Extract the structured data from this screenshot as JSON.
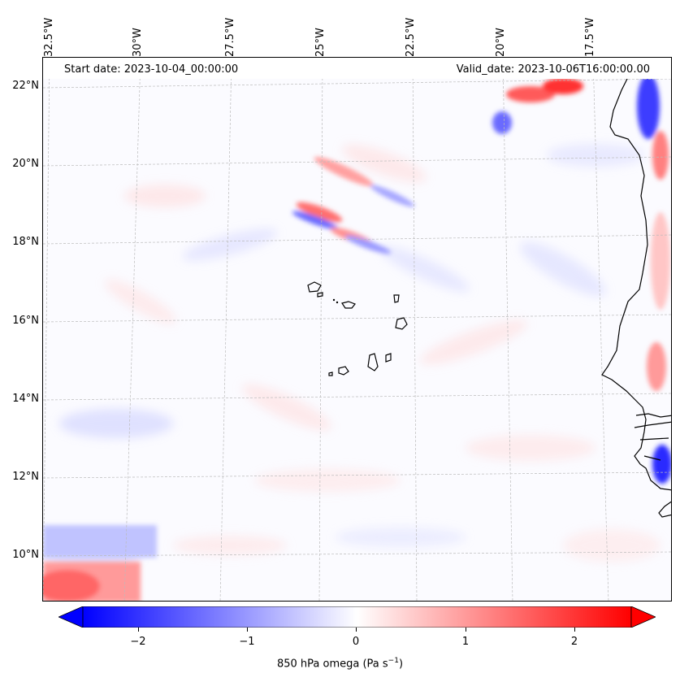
{
  "map": {
    "title_left": "Start date: 2023-10-04_00:00:00",
    "title_right": "Valid_date: 2023-10-06T16:00:00.00",
    "longitude_labels": [
      "32.5°W",
      "30°W",
      "27.5°W",
      "25°W",
      "22.5°W",
      "20°W",
      "17.5°W"
    ],
    "latitude_labels": [
      "22°N",
      "20°N",
      "18°N",
      "16°N",
      "14°N",
      "12°N",
      "10°N"
    ],
    "extent": {
      "lon_min": -32.7,
      "lon_max": -15.5,
      "lat_min": 8.9,
      "lat_max": 22.8
    },
    "variable": "850 hPa omega",
    "colormap": "bwr",
    "colors": {
      "negative": "#0000ff",
      "zero": "#ffffff",
      "positive": "#ff0000",
      "coast": "#000000",
      "grid": "#bbbbbb"
    }
  },
  "colorbar": {
    "label": "850 hPa omega (Pa s",
    "label_sup": "−1",
    "label_end": ")",
    "min": -2.7,
    "max": 2.7,
    "extend": "both",
    "ticks": [
      {
        "value": -2,
        "label": "−2"
      },
      {
        "value": -1,
        "label": "−1"
      },
      {
        "value": 0,
        "label": "0"
      },
      {
        "value": 1,
        "label": "1"
      },
      {
        "value": 2,
        "label": "2"
      }
    ]
  }
}
